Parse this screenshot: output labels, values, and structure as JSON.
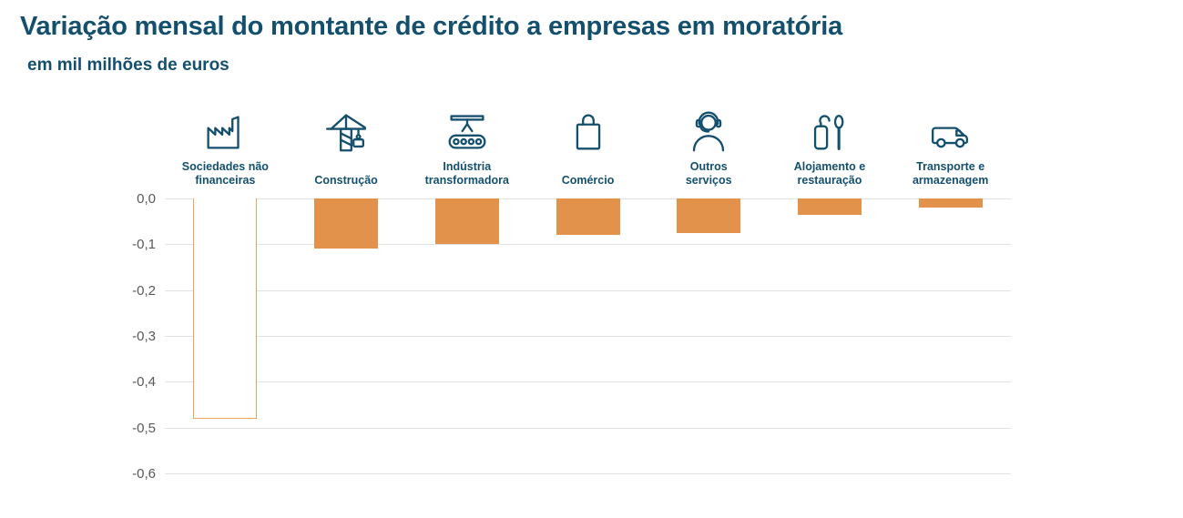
{
  "chart_data": {
    "type": "bar",
    "title": "Variação mensal do montante de crédito a empresas em moratória",
    "subtitle": "em mil milhões de euros",
    "orientation": "vertical",
    "ylim": [
      -0.6,
      0
    ],
    "y_ticks": [
      "0,0",
      "-0,1",
      "-0,2",
      "-0,3",
      "-0,4",
      "-0,5",
      "-0,6"
    ],
    "grid": true,
    "legend": false,
    "colors": {
      "teal": "#14506E",
      "bar_fill": "#E3924C",
      "bar_outline_border": "#F0A25C",
      "gridline": "#E2E2E2",
      "tick_text": "#595959"
    },
    "categories": [
      {
        "label": "Sociedades não\nfinanceiras",
        "icon": "factory-icon",
        "value": -0.48,
        "style": "outline"
      },
      {
        "label": "Construção",
        "icon": "crane-icon",
        "value": -0.11,
        "style": "solid"
      },
      {
        "label": "Indústria\ntransformadora",
        "icon": "conveyor-belt-icon",
        "value": -0.1,
        "style": "solid"
      },
      {
        "label": "Comércio",
        "icon": "shopping-bag-icon",
        "value": -0.08,
        "style": "solid"
      },
      {
        "label": "Outros\nserviços",
        "icon": "headset-person-icon",
        "value": -0.075,
        "style": "solid"
      },
      {
        "label": "Alojamento e\nrestauração",
        "icon": "door-hanger-spoon-icon",
        "value": -0.035,
        "style": "solid"
      },
      {
        "label": "Transporte e\narmazenagem",
        "icon": "delivery-van-icon",
        "value": -0.02,
        "style": "solid"
      }
    ]
  }
}
